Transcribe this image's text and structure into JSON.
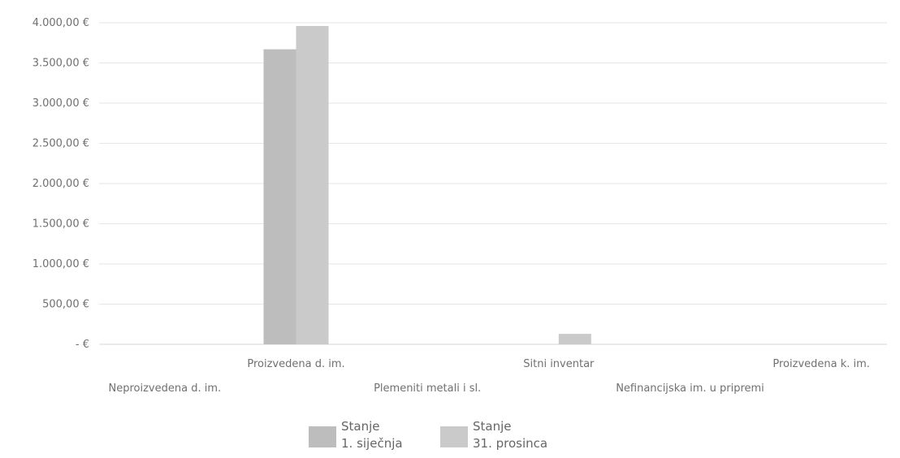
{
  "chart_data": {
    "type": "bar",
    "title": "",
    "xlabel": "",
    "ylabel": "",
    "ylim": [
      0,
      4000
    ],
    "yticks": [
      0,
      500,
      1000,
      1500,
      2000,
      2500,
      3000,
      3500,
      4000
    ],
    "ytick_labels": [
      "- €",
      "500,00 €",
      "1.000,00 €",
      "1.500,00 €",
      "2.000,00 €",
      "2.500,00 €",
      "3.000,00 €",
      "3.500,00 €",
      "4.000,00 €"
    ],
    "categories": [
      "Neproizvedena d. im.",
      "Proizvedena d. im.",
      "Plemeniti metali i sl.",
      "Sitni inventar",
      "Nefinancijska im. u pripremi",
      "Proizvedena k. im."
    ],
    "series": [
      {
        "name": "Stanje 1. siječnja",
        "legend_lines": [
          "Stanje",
          "1. siječnja"
        ],
        "color": "#bdbdbd",
        "values": [
          0,
          3670,
          0,
          0,
          0,
          0
        ]
      },
      {
        "name": "Stanje 31. prosinca",
        "legend_lines": [
          "Stanje",
          "31. prosinca"
        ],
        "color": "#cacaca",
        "values": [
          0,
          3960,
          0,
          130,
          0,
          0
        ]
      }
    ],
    "grid": true,
    "legend_position": "bottom"
  }
}
